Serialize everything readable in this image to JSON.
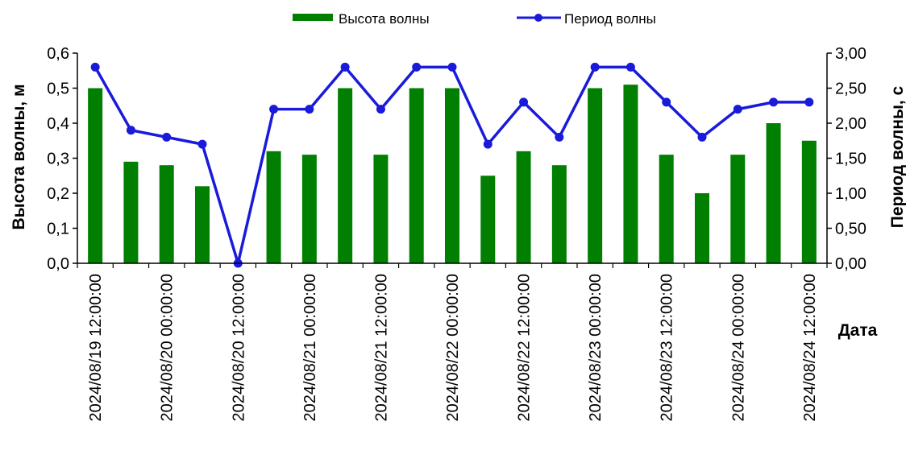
{
  "chart_data": {
    "type": "bar",
    "x": [
      "2024/08/19 12:00:00",
      "2024/08/19 18:00:00",
      "2024/08/20 00:00:00",
      "2024/08/20 06:00:00",
      "2024/08/20 12:00:00",
      "2024/08/20 18:00:00",
      "2024/08/21 00:00:00",
      "2024/08/21 06:00:00",
      "2024/08/21 12:00:00",
      "2024/08/21 18:00:00",
      "2024/08/22 00:00:00",
      "2024/08/22 06:00:00",
      "2024/08/22 12:00:00",
      "2024/08/22 18:00:00",
      "2024/08/23 00:00:00",
      "2024/08/23 06:00:00",
      "2024/08/23 12:00:00",
      "2024/08/23 18:00:00",
      "2024/08/24 00:00:00",
      "2024/08/24 06:00:00",
      "2024/08/24 12:00:00"
    ],
    "x_tick_labels": [
      "2024/08/19 12:00:00",
      "2024/08/20 00:00:00",
      "2024/08/20 12:00:00",
      "2024/08/21 00:00:00",
      "2024/08/21 12:00:00",
      "2024/08/22 00:00:00",
      "2024/08/22 12:00:00",
      "2024/08/23 00:00:00",
      "2024/08/23 12:00:00",
      "2024/08/24 00:00:00",
      "2024/08/24 12:00:00"
    ],
    "xlabel": "Дата",
    "series": [
      {
        "name": "Высота волны",
        "type": "bar",
        "axis": "left",
        "color": "#007f00",
        "values": [
          0.5,
          0.29,
          0.28,
          0.22,
          0.0,
          0.32,
          0.31,
          0.5,
          0.31,
          0.5,
          0.5,
          0.25,
          0.32,
          0.28,
          0.5,
          0.51,
          0.31,
          0.2,
          0.31,
          0.4,
          0.35
        ]
      },
      {
        "name": "Период волны",
        "type": "line",
        "axis": "right",
        "color": "#1a1adb",
        "values": [
          2.8,
          1.9,
          1.8,
          1.7,
          0.0,
          2.2,
          2.2,
          2.8,
          2.2,
          2.8,
          2.8,
          1.7,
          2.3,
          1.8,
          2.8,
          2.8,
          2.3,
          1.8,
          2.2,
          2.3,
          2.3
        ]
      }
    ],
    "y_left": {
      "label": "Высота волны, м",
      "ylim": [
        0,
        0.6
      ],
      "ticks": [
        "0,0",
        "0,1",
        "0,2",
        "0,3",
        "0,4",
        "0,5",
        "0,6"
      ]
    },
    "y_right": {
      "label": "Период волны, с",
      "ylim": [
        0,
        3.0
      ],
      "ticks": [
        "0,00",
        "0,50",
        "1,00",
        "1,50",
        "2,00",
        "2,50",
        "3,00"
      ]
    },
    "grid": false,
    "legend_position": "top-center"
  }
}
